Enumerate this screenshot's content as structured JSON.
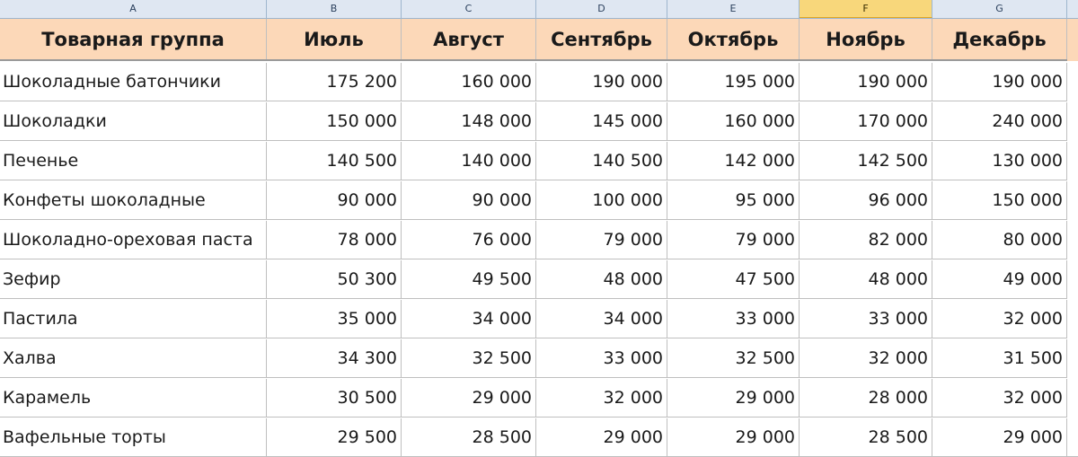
{
  "columns": [
    "A",
    "B",
    "C",
    "D",
    "E",
    "F",
    "G"
  ],
  "active_column": "F",
  "headers": [
    "Товарная группа",
    "Июль",
    "Август",
    "Сентябрь",
    "Октябрь",
    "Ноябрь",
    "Декабрь"
  ],
  "rows": [
    [
      "Шоколадные батончики",
      "175 200",
      "160 000",
      "190 000",
      "195 000",
      "190 000",
      "190 000"
    ],
    [
      "Шоколадки",
      "150 000",
      "148 000",
      "145 000",
      "160 000",
      "170 000",
      "240 000"
    ],
    [
      "Печенье",
      "140 500",
      "140 000",
      "140 500",
      "142 000",
      "142 500",
      "130 000"
    ],
    [
      "Конфеты шоколадные",
      "90 000",
      "90 000",
      "100 000",
      "95 000",
      "96 000",
      "150 000"
    ],
    [
      "Шоколадно-ореховая паста",
      "78 000",
      "76 000",
      "79 000",
      "79 000",
      "82 000",
      "80 000"
    ],
    [
      "Зефир",
      "50 300",
      "49 500",
      "48 000",
      "47 500",
      "48 000",
      "49 000"
    ],
    [
      "Пастила",
      "35 000",
      "34 000",
      "34 000",
      "33 000",
      "33 000",
      "32 000"
    ],
    [
      "Халва",
      "34 300",
      "32 500",
      "33 000",
      "32 500",
      "32 000",
      "31 500"
    ],
    [
      "Карамель",
      "30 500",
      "29 000",
      "32 000",
      "29 000",
      "28 000",
      "32 000"
    ],
    [
      "Вафельные торты",
      "29 500",
      "28 500",
      "29 000",
      "29 000",
      "28 500",
      "29 000"
    ]
  ],
  "colors": {
    "header_fill": "#fcd8b8",
    "column_header_fill": "#dfe7f2",
    "active_column_fill": "#f8d77b",
    "gridline": "#bfbfbf"
  }
}
